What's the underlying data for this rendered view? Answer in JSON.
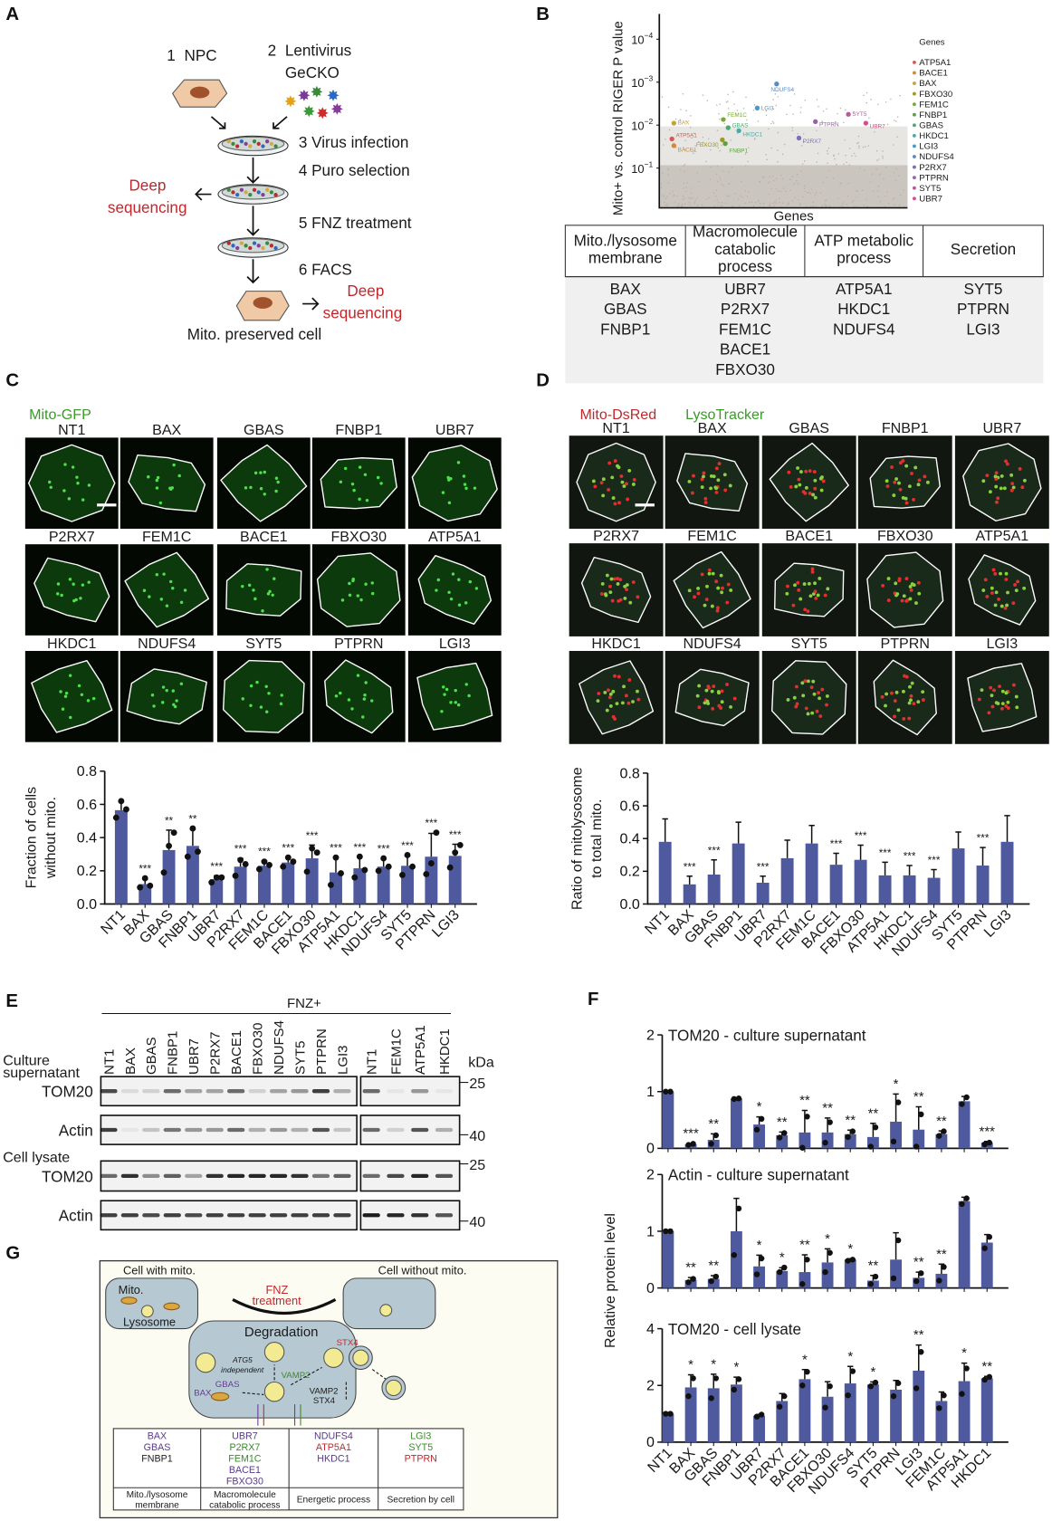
{
  "panel_labels": {
    "a": "A",
    "b": "B",
    "c": "C",
    "d": "D",
    "e": "E",
    "f": "F",
    "g": "G"
  },
  "panelA": {
    "step1_num": "1",
    "step1": "NPC",
    "step2_num": "2",
    "step2a": "Lentivirus",
    "step2b": "GeCKO",
    "step3": "3  Virus infection",
    "step4": "4  Puro selection",
    "step5": "5  FNZ treatment",
    "step6": "6  FACS",
    "deep1a": "Deep",
    "deep1b": "sequencing",
    "deep2a": "Deep",
    "deep2b": "sequencing",
    "result": "Mito. preserved cell"
  },
  "panelB": {
    "ylabel": "Mito+ vs. control RIGER P value",
    "xlabel": "Genes",
    "yticks": [
      {
        "base": "10",
        "exp": "−4",
        "p": 0.0001
      },
      {
        "base": "10",
        "exp": "−3",
        "p": 0.001
      },
      {
        "base": "10",
        "exp": "−2",
        "p": 0.01
      },
      {
        "base": "10",
        "exp": "−1",
        "p": 0.1
      }
    ],
    "scale": "log",
    "legend_title": "Genes",
    "background_color": "#bdb6ae",
    "genes": [
      {
        "name": "ATP5A1",
        "color": "#d65a50",
        "p": 0.021
      },
      {
        "name": "BACE1",
        "color": "#d08a3c",
        "p": 0.03
      },
      {
        "name": "BAX",
        "color": "#c9a03a",
        "p": 0.009
      },
      {
        "name": "FBXO30",
        "color": "#9a9a2a",
        "p": 0.022
      },
      {
        "name": "FEM1C",
        "color": "#7aa83a",
        "p": 0.0074
      },
      {
        "name": "FNBP1",
        "color": "#5ea040",
        "p": 0.027
      },
      {
        "name": "GBAS",
        "color": "#4aa878",
        "p": 0.0115
      },
      {
        "name": "HKDC1",
        "color": "#4aa8a8",
        "p": 0.0135
      },
      {
        "name": "LGI3",
        "color": "#4a98c8",
        "p": 0.004
      },
      {
        "name": "NDUFS4",
        "color": "#5a88c0",
        "p": 0.0011
      },
      {
        "name": "P2RX7",
        "color": "#7a70b8",
        "p": 0.02
      },
      {
        "name": "PTPRN",
        "color": "#9a60a8",
        "p": 0.0083
      },
      {
        "name": "SYT5",
        "color": "#b85a98",
        "p": 0.0056
      },
      {
        "name": "UBR7",
        "color": "#d0508a",
        "p": 0.009
      }
    ],
    "table": {
      "headers": [
        [
          "Mito./lysosome",
          "membrane"
        ],
        [
          "Macromolecule",
          "catabolic",
          "process"
        ],
        [
          "ATP metabolic",
          "process"
        ],
        [
          "Secretion"
        ]
      ],
      "columns": [
        [
          "BAX",
          "GBAS",
          "FNBP1"
        ],
        [
          "UBR7",
          "P2RX7",
          "FEM1C",
          "BACE1",
          "FBXO30"
        ],
        [
          "ATP5A1",
          "HKDC1",
          "NDUFS4"
        ],
        [
          "SYT5",
          "PTPRN",
          "LGI3"
        ]
      ]
    }
  },
  "panelC": {
    "stain": "Mito-GFP",
    "stain_color": "#3a9a2a",
    "image_labels": [
      [
        "NT1",
        "BAX",
        "GBAS",
        "FNBP1",
        "UBR7"
      ],
      [
        "P2RX7",
        "FEM1C",
        "BACE1",
        "FBXO30",
        "ATP5A1"
      ],
      [
        "HKDC1",
        "NDUFS4",
        "SYT5",
        "PTPRN",
        "LGI3"
      ]
    ]
  },
  "panelD": {
    "stain1": "Mito-DsRed",
    "stain1_color": "#c0282d",
    "stain2": "LysoTracker",
    "stain2_color": "#3a9a2a",
    "image_labels": [
      [
        "NT1",
        "BAX",
        "GBAS",
        "FNBP1",
        "UBR7"
      ],
      [
        "P2RX7",
        "FEM1C",
        "BACE1",
        "FBXO30",
        "ATP5A1"
      ],
      [
        "HKDC1",
        "NDUFS4",
        "SYT5",
        "PTPRN",
        "LGI3"
      ]
    ]
  },
  "panelE": {
    "group_label": "FNZ+",
    "lanes_left": [
      "NT1",
      "BAX",
      "GBAS",
      "FNBP1",
      "UBR7",
      "P2RX7",
      "BACE1",
      "FBXO30",
      "NDUFS4",
      "SYT5",
      "PTPRN",
      "LGI3"
    ],
    "lanes_right": [
      "NT1",
      "FEM1C",
      "ATP5A1",
      "HKDC1"
    ],
    "kda_label": "kDa",
    "section1a": "Culture",
    "section1b": "supernatant",
    "section2": "Cell lysate",
    "rows": [
      {
        "label": "TOM20",
        "marker": "25",
        "left": [
          0.75,
          0.1,
          0.15,
          0.6,
          0.35,
          0.35,
          0.6,
          0.15,
          0.35,
          0.4,
          0.8,
          0.3
        ]
      },
      {
        "label": "Actin",
        "marker": "40",
        "left": [
          0.8,
          0.05,
          0.2,
          0.55,
          0.4,
          0.4,
          0.6,
          0.3,
          0.4,
          0.3,
          0.7,
          0.2
        ]
      },
      {
        "label": "TOM20",
        "marker": "25",
        "left": [
          0.6,
          0.85,
          0.45,
          0.65,
          0.35,
          0.85,
          0.9,
          0.9,
          0.9,
          0.85,
          0.55,
          0.65
        ]
      },
      {
        "label": "Actin",
        "marker": "40",
        "left": [
          0.8,
          0.8,
          0.75,
          0.8,
          0.75,
          0.8,
          0.8,
          0.8,
          0.8,
          0.8,
          0.8,
          0.8
        ]
      }
    ]
  },
  "panelG": {
    "cell_with": "Cell with mito.",
    "cell_without": "Cell without mito.",
    "mito": "Mito.",
    "lysosome": "Lysosome",
    "fnz1": "FNZ",
    "fnz2": "treatment",
    "degradation": "Degradation",
    "atg1": "ATG5",
    "atg2": "independent",
    "bax": "BAX",
    "gbas": "GBAS",
    "vamp2": "VAMP2",
    "stx4": "STX4",
    "vamp2b": "VAMP2",
    "stx4b": "STX4",
    "table": {
      "columns": [
        [
          {
            "g": "BAX",
            "c": "#5a3a8a"
          },
          {
            "g": "GBAS",
            "c": "#5a3a8a"
          },
          {
            "g": "FNBP1",
            "c": "#222222"
          }
        ],
        [
          {
            "g": "UBR7",
            "c": "#5a3a8a"
          },
          {
            "g": "P2RX7",
            "c": "#3a8a2a"
          },
          {
            "g": "FEM1C",
            "c": "#3a8a2a"
          },
          {
            "g": "BACE1",
            "c": "#5a3a8a"
          },
          {
            "g": "FBXO30",
            "c": "#5a3a8a"
          }
        ],
        [
          {
            "g": "NDUFS4",
            "c": "#5a3a8a"
          },
          {
            "g": "ATP5A1",
            "c": "#c0282d"
          },
          {
            "g": "HKDC1",
            "c": "#5a3a8a"
          }
        ],
        [
          {
            "g": "LGI3",
            "c": "#3a8a2a"
          },
          {
            "g": "SYT5",
            "c": "#3a8a2a"
          },
          {
            "g": "PTPRN",
            "c": "#c0282d"
          }
        ]
      ],
      "footers": [
        [
          "Mito./lysosome",
          "membrane"
        ],
        [
          "Macromolecule",
          "catabolic process"
        ],
        [
          "Energetic process"
        ],
        [
          "Secretion by cell"
        ]
      ]
    }
  },
  "chart_data": [
    {
      "id": "C",
      "type": "bar",
      "ylabel": "Fraction of cells without mito.",
      "ylabel_lines": [
        "Fraction of cells",
        "without mito."
      ],
      "ylim": [
        0,
        0.8
      ],
      "yticks": [
        "0.0",
        "0.2",
        "0.4",
        "0.6",
        "0.8"
      ],
      "bar_color": "#4f5a9e",
      "categories": [
        "NT1",
        "BAX",
        "GBAS",
        "FNBP1",
        "UBR7",
        "P2RX7",
        "FEM1C",
        "BACE1",
        "FBXO30",
        "ATP5A1",
        "HKDC1",
        "NDUFS4",
        "SYT5",
        "PTPRN",
        "LGI3"
      ],
      "values": [
        0.565,
        0.12,
        0.325,
        0.35,
        0.15,
        0.225,
        0.23,
        0.25,
        0.275,
        0.19,
        0.215,
        0.225,
        0.23,
        0.285,
        0.29
      ],
      "sd": [
        0.05,
        0.03,
        0.12,
        0.1,
        0.02,
        0.05,
        0.03,
        0.03,
        0.08,
        0.09,
        0.07,
        0.05,
        0.06,
        0.14,
        0.07
      ],
      "points": [
        [
          0.52,
          0.62,
          0.57
        ],
        [
          0.1,
          0.155,
          0.11
        ],
        [
          0.19,
          0.35,
          0.43
        ],
        [
          0.285,
          0.455,
          0.315
        ],
        [
          0.13,
          0.16,
          0.16
        ],
        [
          0.17,
          0.265,
          0.24
        ],
        [
          0.21,
          0.255,
          0.235
        ],
        [
          0.225,
          0.28,
          0.255
        ],
        [
          0.195,
          0.335,
          0.31
        ],
        [
          0.115,
          0.28,
          0.185
        ],
        [
          0.16,
          0.285,
          0.205
        ],
        [
          0.2,
          0.275,
          0.225
        ],
        [
          0.175,
          0.295,
          0.225
        ],
        [
          0.18,
          0.245,
          0.43
        ],
        [
          0.22,
          0.31,
          0.355
        ]
      ],
      "significance": [
        "",
        "***",
        "**",
        "**",
        "***",
        "***",
        "***",
        "***",
        "***",
        "***",
        "***",
        "***",
        "***",
        "***",
        "***"
      ]
    },
    {
      "id": "D",
      "type": "bar",
      "ylabel": "Ratio of mitolysosome to total mito.",
      "ylabel_lines": [
        "Ratio of mitolysosome",
        "to total mito."
      ],
      "ylim": [
        0,
        0.8
      ],
      "yticks": [
        "0.0",
        "0.2",
        "0.4",
        "0.6",
        "0.8"
      ],
      "bar_color": "#4f5a9e",
      "categories": [
        "NT1",
        "BAX",
        "GBAS",
        "FNBP1",
        "UBR7",
        "P2RX7",
        "FEM1C",
        "BACE1",
        "FBXO30",
        "ATP5A1",
        "HKDC1",
        "NDUFS4",
        "SYT5",
        "PTPRN",
        "LGI3"
      ],
      "values": [
        0.38,
        0.12,
        0.18,
        0.37,
        0.13,
        0.28,
        0.37,
        0.24,
        0.27,
        0.175,
        0.175,
        0.16,
        0.34,
        0.235,
        0.38
      ],
      "sd": [
        0.14,
        0.05,
        0.09,
        0.13,
        0.04,
        0.11,
        0.11,
        0.07,
        0.09,
        0.08,
        0.06,
        0.05,
        0.1,
        0.11,
        0.16
      ],
      "significance": [
        "",
        "***",
        "***",
        "",
        "***",
        "",
        "",
        "***",
        "***",
        "***",
        "***",
        "***",
        "",
        "***",
        ""
      ]
    },
    {
      "id": "F1",
      "type": "bar",
      "title": "TOM20 - culture supernatant",
      "ylim": [
        0,
        2
      ],
      "yticks": [
        "0",
        "1",
        "2"
      ],
      "bar_color": "#4f5a9e",
      "categories": [
        "NT1",
        "BAX",
        "GBAS",
        "FNBP1",
        "UBR7",
        "P2RX7",
        "BACE1",
        "FBXO30",
        "NDUFS4",
        "SYT5",
        "PTPRN",
        "LGI3",
        "FEM1C",
        "ATP5A1",
        "HKDC1"
      ],
      "values": [
        1.0,
        0.07,
        0.15,
        0.88,
        0.42,
        0.23,
        0.28,
        0.28,
        0.25,
        0.2,
        0.47,
        0.33,
        0.25,
        0.83,
        0.1
      ],
      "points": [
        [
          1,
          1
        ],
        [
          0.06,
          0.08
        ],
        [
          0.08,
          0.23
        ],
        [
          0.87,
          0.88
        ],
        [
          0.33,
          0.52
        ],
        [
          0.19,
          0.27
        ],
        [
          0.01,
          0.56
        ],
        [
          0.1,
          0.46
        ],
        [
          0.2,
          0.3
        ],
        [
          0.03,
          0.37
        ],
        [
          0.12,
          0.81
        ],
        [
          0.03,
          0.6
        ],
        [
          0.22,
          0.3
        ],
        [
          0.78,
          0.9
        ],
        [
          0.07,
          0.1
        ]
      ],
      "significance": [
        "",
        "***",
        "**",
        "",
        "*",
        "**",
        "**",
        "**",
        "**",
        "**",
        "*",
        "**",
        "**",
        "",
        "***"
      ]
    },
    {
      "id": "F2",
      "type": "bar",
      "title": "Actin - culture supernatant",
      "ylim": [
        0,
        2
      ],
      "yticks": [
        "0",
        "1",
        "2"
      ],
      "bar_color": "#4f5a9e",
      "categories": [
        "NT1",
        "BAX",
        "GBAS",
        "FNBP1",
        "UBR7",
        "P2RX7",
        "BACE1",
        "FBXO30",
        "NDUFS4",
        "SYT5",
        "PTPRN",
        "LGI3",
        "FEM1C",
        "ATP5A1",
        "HKDC1"
      ],
      "values": [
        1.0,
        0.14,
        0.16,
        1.0,
        0.38,
        0.3,
        0.28,
        0.45,
        0.5,
        0.13,
        0.5,
        0.18,
        0.25,
        1.53,
        0.8
      ],
      "points": [
        [
          1,
          1
        ],
        [
          0.1,
          0.16
        ],
        [
          0.12,
          0.2
        ],
        [
          0.58,
          1.4
        ],
        [
          0.24,
          0.52
        ],
        [
          0.28,
          0.36
        ],
        [
          0.07,
          0.5
        ],
        [
          0.28,
          0.62
        ],
        [
          0.48,
          0.5
        ],
        [
          0.07,
          0.2
        ],
        [
          0.17,
          0.84
        ],
        [
          0.12,
          0.26
        ],
        [
          0.13,
          0.37
        ],
        [
          1.48,
          1.58
        ],
        [
          0.7,
          0.9
        ]
      ],
      "significance": [
        "",
        "**",
        "**",
        "",
        "*",
        "*",
        "**",
        "*",
        "*",
        "**",
        "",
        "**",
        "**",
        "",
        ""
      ]
    },
    {
      "id": "F3",
      "type": "bar",
      "title": "TOM20 - cell lysate",
      "ylim": [
        0,
        4
      ],
      "yticks": [
        "0",
        "2",
        "4"
      ],
      "bar_color": "#4f5a9e",
      "ylabel": "Relative protein level",
      "categories": [
        "NT1",
        "BAX",
        "GBAS",
        "FNBP1",
        "UBR7",
        "P2RX7",
        "BACE1",
        "FBXO30",
        "NDUFS4",
        "SYT5",
        "PTPRN",
        "LGI3",
        "FEM1C",
        "ATP5A1",
        "HKDC1"
      ],
      "values": [
        1.0,
        1.93,
        1.9,
        2.03,
        0.93,
        1.45,
        2.22,
        1.6,
        2.07,
        2.03,
        1.85,
        2.52,
        1.45,
        2.15,
        2.25
      ],
      "points": [
        [
          1,
          1
        ],
        [
          1.62,
          2.25
        ],
        [
          1.55,
          2.25
        ],
        [
          1.85,
          2.22
        ],
        [
          0.9,
          0.97
        ],
        [
          1.25,
          1.62
        ],
        [
          2.0,
          2.48
        ],
        [
          1.22,
          1.97
        ],
        [
          1.65,
          2.5
        ],
        [
          1.97,
          2.1
        ],
        [
          1.62,
          2.08
        ],
        [
          1.9,
          3.18
        ],
        [
          1.2,
          1.65
        ],
        [
          1.7,
          2.6
        ],
        [
          2.2,
          2.3
        ]
      ],
      "significance": [
        "",
        "*",
        "*",
        "*",
        "",
        "",
        "*",
        "",
        "*",
        "*",
        "",
        "**",
        "",
        "*",
        "**"
      ]
    }
  ]
}
